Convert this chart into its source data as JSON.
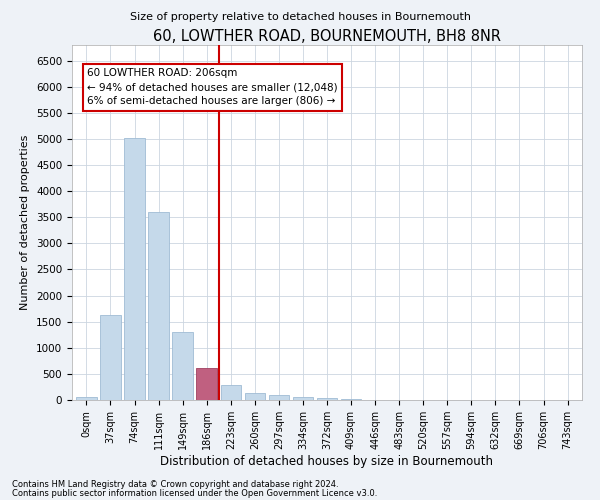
{
  "title": "60, LOWTHER ROAD, BOURNEMOUTH, BH8 8NR",
  "subtitle": "Size of property relative to detached houses in Bournemouth",
  "xlabel": "Distribution of detached houses by size in Bournemouth",
  "ylabel": "Number of detached properties",
  "categories": [
    "0sqm",
    "37sqm",
    "74sqm",
    "111sqm",
    "149sqm",
    "186sqm",
    "223sqm",
    "260sqm",
    "297sqm",
    "334sqm",
    "372sqm",
    "409sqm",
    "446sqm",
    "483sqm",
    "520sqm",
    "557sqm",
    "594sqm",
    "632sqm",
    "669sqm",
    "706sqm",
    "743sqm"
  ],
  "values": [
    50,
    1620,
    5020,
    3600,
    1300,
    620,
    280,
    130,
    100,
    55,
    30,
    20,
    0,
    0,
    0,
    0,
    0,
    0,
    0,
    0,
    0
  ],
  "bar_color": "#c5d9ea",
  "bar_edge_color": "#a0bcd4",
  "highlight_bar_index": 5,
  "highlight_bar_color": "#c06080",
  "highlight_bar_edge_color": "#a04060",
  "vline_x": 5.5,
  "vline_color": "#cc0000",
  "annotation_line1": "60 LOWTHER ROAD: 206sqm",
  "annotation_line2": "← 94% of detached houses are smaller (12,048)",
  "annotation_line3": "6% of semi-detached houses are larger (806) →",
  "annotation_box_color": "#cc0000",
  "ylim": [
    0,
    6800
  ],
  "yticks": [
    0,
    500,
    1000,
    1500,
    2000,
    2500,
    3000,
    3500,
    4000,
    4500,
    5000,
    5500,
    6000,
    6500
  ],
  "footnote1": "Contains HM Land Registry data © Crown copyright and database right 2024.",
  "footnote2": "Contains public sector information licensed under the Open Government Licence v3.0.",
  "bg_color": "#eef2f7",
  "plot_bg_color": "#ffffff",
  "grid_color": "#ccd6e0"
}
